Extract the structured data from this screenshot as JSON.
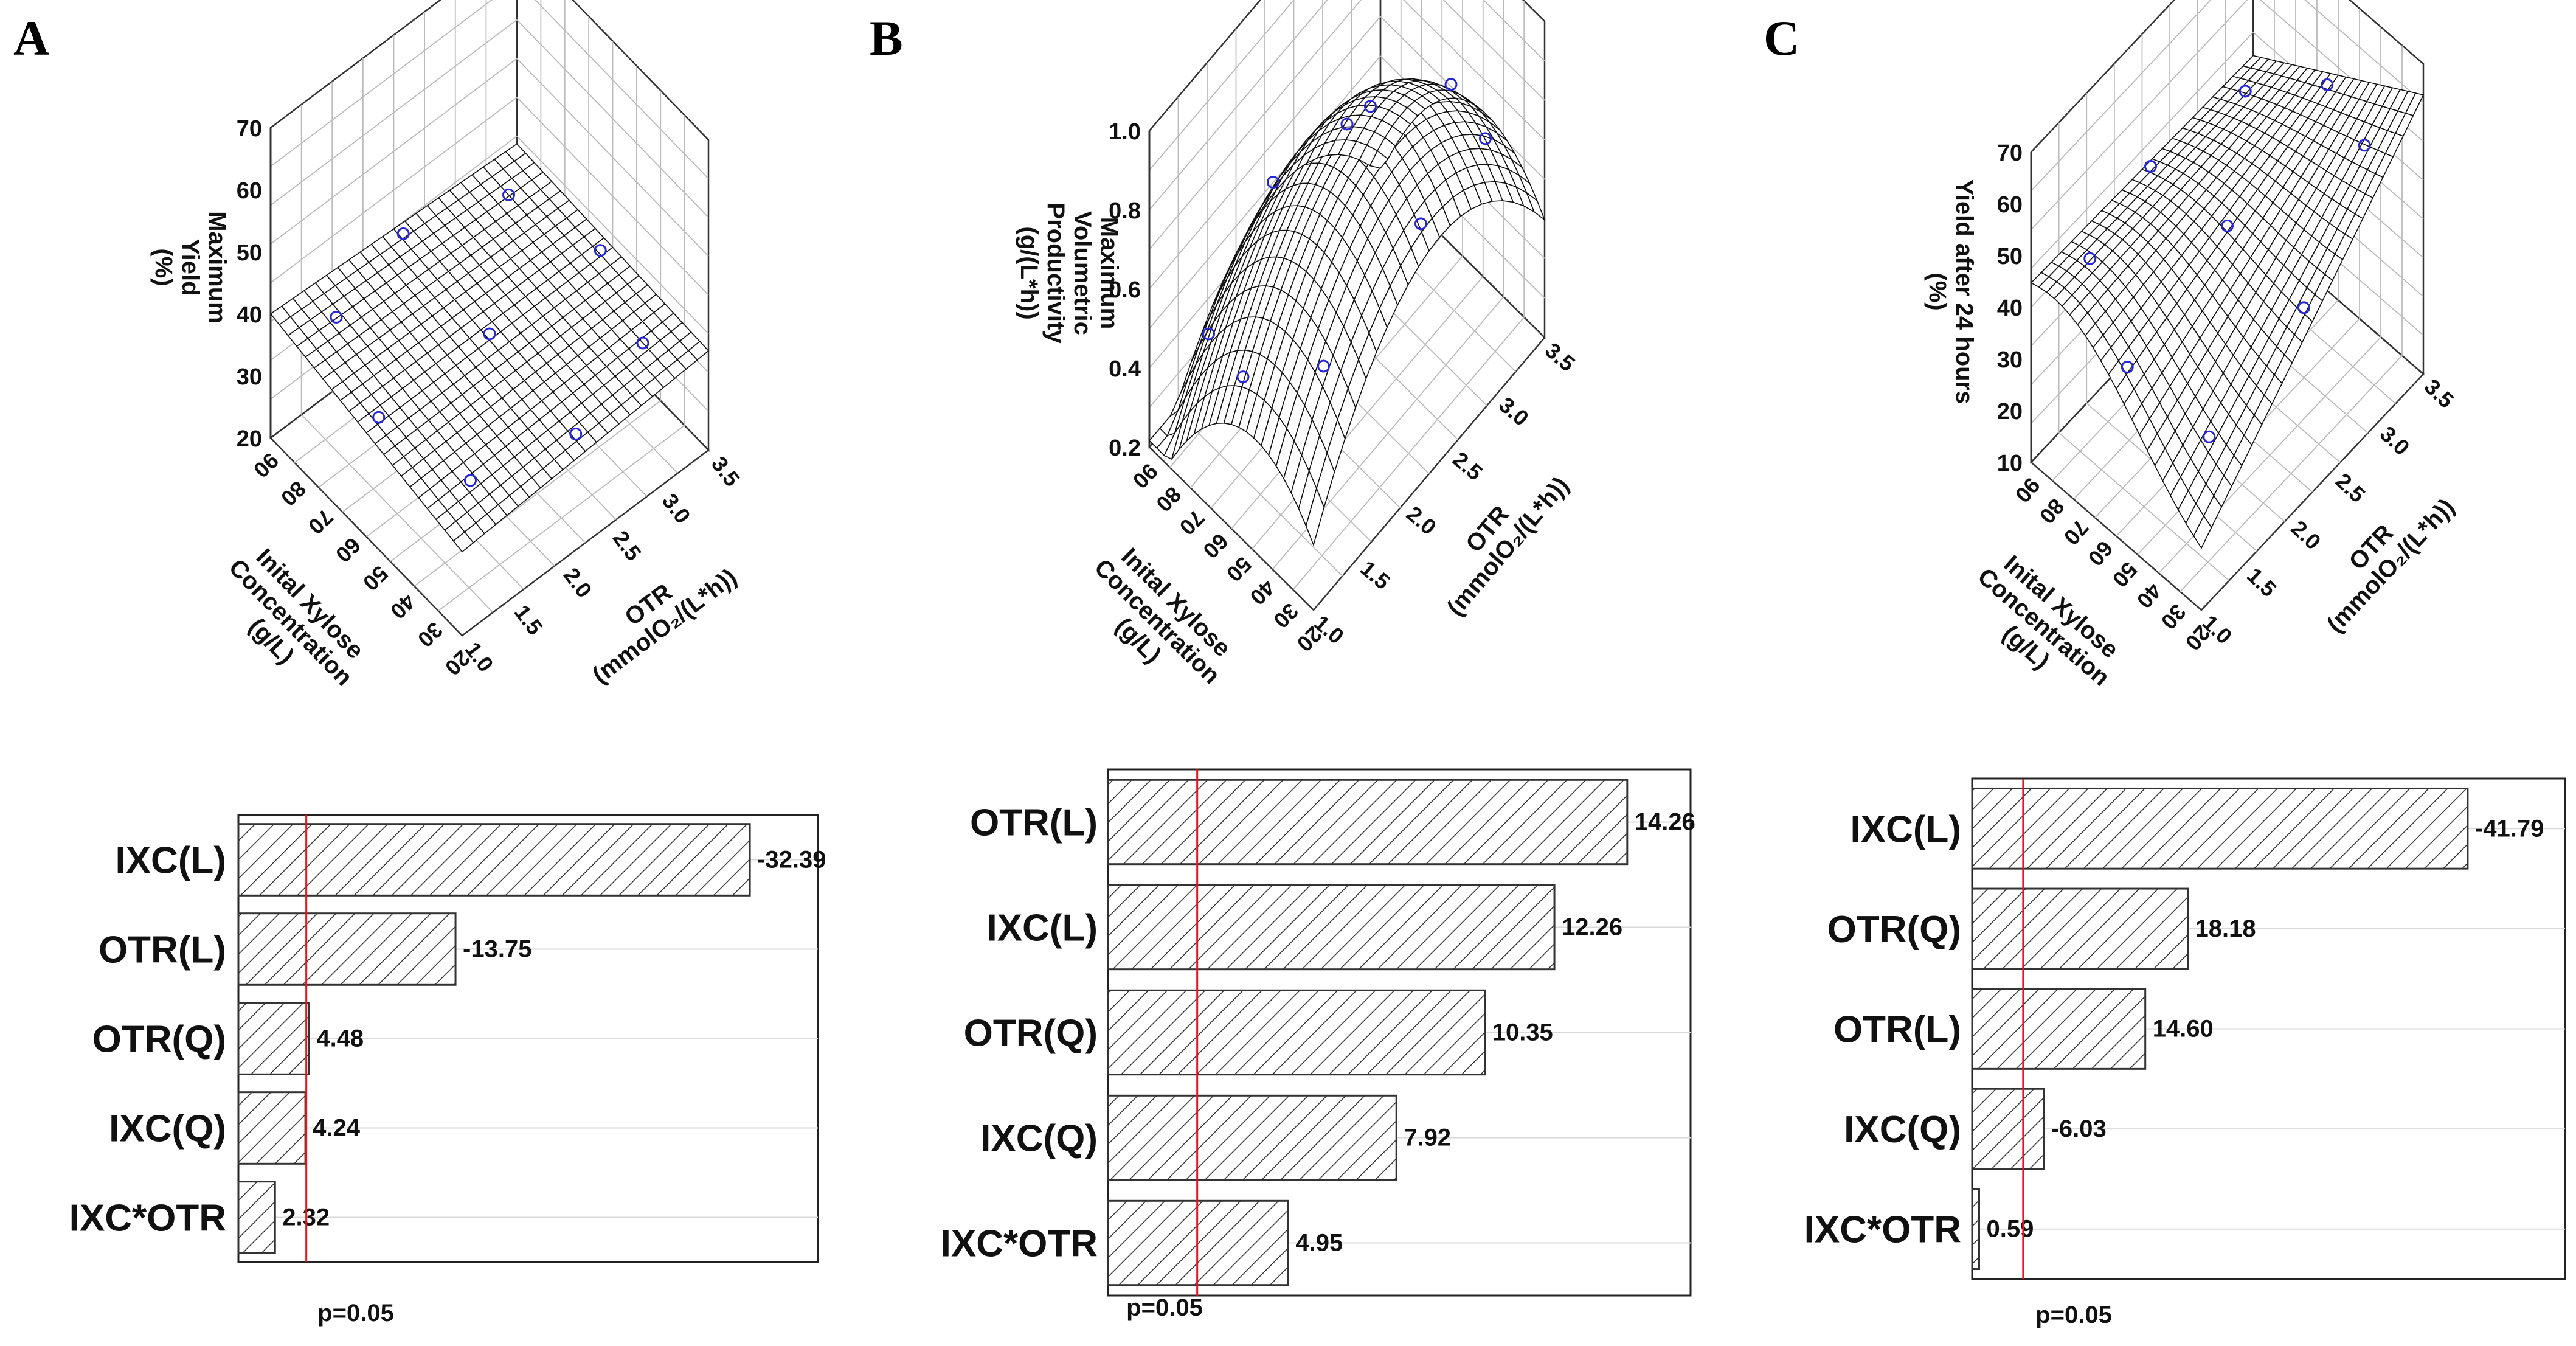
{
  "panels": [
    {
      "letter": "A",
      "surface": {
        "z_label_lines": [
          "Maximum",
          "Yield",
          "(%)"
        ],
        "z_ticks": [
          "20",
          "30",
          "40",
          "50",
          "60",
          "70"
        ],
        "y_label_lines": [
          "Inital Xylose",
          "Concentration",
          "(g/L)"
        ],
        "y_ticks": [
          "20",
          "30",
          "40",
          "50",
          "60",
          "70",
          "80",
          "90"
        ],
        "x_label_lines": [
          "OTR",
          "(mmolO₂/(L*h))"
        ],
        "x_ticks": [
          "1.0",
          "1.5",
          "2.0",
          "2.5",
          "3.0",
          "3.5"
        ]
      },
      "pareto": {
        "type": "bar",
        "categories": [
          "IXC(L)",
          "OTR(L)",
          "OTR(Q)",
          "IXC(Q)",
          "IXC*OTR"
        ],
        "values": [
          -32.39,
          -13.75,
          4.48,
          4.24,
          2.32
        ],
        "value_labels": [
          "-32.39",
          "-13.75",
          "4.48",
          "4.24",
          "2.32"
        ],
        "threshold": 4.3,
        "xlim": [
          0,
          36.7
        ],
        "threshold_label": "p=0.05"
      }
    },
    {
      "letter": "B",
      "surface": {
        "z_label_lines": [
          "Maximum",
          "Volumetric",
          "Productivity",
          "(g/(L*h))"
        ],
        "z_ticks": [
          "0.2",
          "0.4",
          "0.6",
          "0.8",
          "1.0"
        ],
        "y_label_lines": [
          "Inital Xylose",
          "Concentration",
          "(g/L)"
        ],
        "y_ticks": [
          "20",
          "30",
          "40",
          "50",
          "60",
          "70",
          "80",
          "90"
        ],
        "x_label_lines": [
          "OTR",
          "(mmolO₂/(L*h))"
        ],
        "x_ticks": [
          "1.0",
          "1.5",
          "2.0",
          "2.5",
          "3.0",
          "3.5"
        ]
      },
      "pareto": {
        "type": "bar",
        "categories": [
          "OTR(L)",
          "IXC(L)",
          "OTR(Q)",
          "IXC(Q)",
          "IXC*OTR"
        ],
        "values": [
          14.26,
          12.26,
          10.35,
          7.92,
          4.95
        ],
        "value_labels": [
          "14.26",
          "12.26",
          "10.35",
          "7.92",
          "4.95"
        ],
        "threshold": 2.45,
        "xlim": [
          0,
          16.0
        ],
        "threshold_label": "p=0.05"
      }
    },
    {
      "letter": "C",
      "surface": {
        "z_label_lines": [
          "Yield after 24 hours",
          "(%)"
        ],
        "z_ticks": [
          "10",
          "20",
          "30",
          "40",
          "50",
          "60",
          "70"
        ],
        "y_label_lines": [
          "Inital Xylose",
          "Concentration",
          "(g/L)"
        ],
        "y_ticks": [
          "20",
          "30",
          "40",
          "50",
          "60",
          "70",
          "80",
          "90"
        ],
        "x_label_lines": [
          "OTR",
          "(mmolO₂/(L*h))"
        ],
        "x_ticks": [
          "1.0",
          "1.5",
          "2.0",
          "2.5",
          "3.0",
          "3.5"
        ]
      },
      "pareto": {
        "type": "bar",
        "categories": [
          "IXC(L)",
          "OTR(Q)",
          "OTR(L)",
          "IXC(Q)",
          "IXC*OTR"
        ],
        "values": [
          -41.79,
          18.18,
          14.6,
          -6.03,
          0.59
        ],
        "value_labels": [
          "-41.79",
          "18.18",
          "14.60",
          "-6.03",
          "0.59"
        ],
        "threshold": 4.3,
        "xlim": [
          0,
          50.0
        ],
        "threshold_label": "p=0.05"
      }
    }
  ],
  "chart_data": [
    {
      "type": "bar",
      "panel": "A",
      "title": "",
      "categories": [
        "IXC(L)",
        "OTR(L)",
        "OTR(Q)",
        "IXC(Q)",
        "IXC*OTR"
      ],
      "values": [
        -32.39,
        -13.75,
        4.48,
        4.24,
        2.32
      ],
      "reference_line": {
        "label": "p=0.05"
      },
      "xlabel": "",
      "ylabel": ""
    },
    {
      "type": "bar",
      "panel": "B",
      "title": "",
      "categories": [
        "OTR(L)",
        "IXC(L)",
        "OTR(Q)",
        "IXC(Q)",
        "IXC*OTR"
      ],
      "values": [
        14.26,
        12.26,
        10.35,
        7.92,
        4.95
      ],
      "reference_line": {
        "label": "p=0.05"
      },
      "xlabel": "",
      "ylabel": ""
    },
    {
      "type": "bar",
      "panel": "C",
      "title": "",
      "categories": [
        "IXC(L)",
        "OTR(Q)",
        "OTR(L)",
        "IXC(Q)",
        "IXC*OTR"
      ],
      "values": [
        -41.79,
        18.18,
        14.6,
        -6.03,
        0.59
      ],
      "reference_line": {
        "label": "p=0.05"
      },
      "xlabel": "",
      "ylabel": ""
    }
  ],
  "colors": {
    "bar_hatch": "#333333",
    "bar_fill": "#ffffff",
    "threshold_line": "#e8141c",
    "gridline": "#d9d9d9",
    "data_point": "#2727d8",
    "text": "#111111"
  }
}
